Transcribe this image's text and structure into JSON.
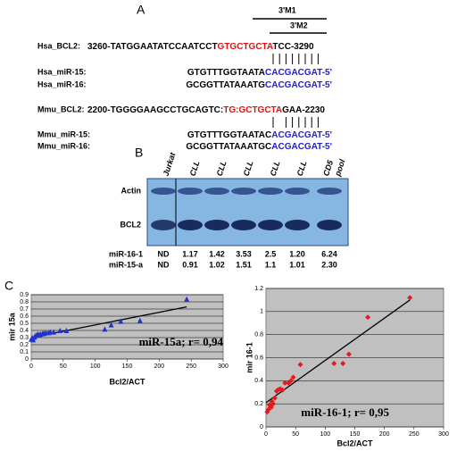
{
  "panel_a": {
    "label": "A",
    "motifs": [
      "3'M1",
      "3'M2"
    ],
    "rows": [
      {
        "name": "Hsa_BCL2:",
        "segments": [
          {
            "text": "3260-TATGGAATATCCAATCCT",
            "color": "#000000"
          },
          {
            "text": "GTGCTGCTA",
            "color": "#e01010"
          },
          {
            "text": "TCC-3290",
            "color": "#000000"
          }
        ]
      },
      {
        "name": "Hsa_miR-15:",
        "segments": [
          {
            "text": "GTGTTTGGTAATA",
            "color": "#000000"
          },
          {
            "text": "CACGACGAT-5'",
            "color": "#2020d0"
          }
        ]
      },
      {
        "name": "Hsa_miR-16:",
        "segments": [
          {
            "text": "GCGGTTATAAATG",
            "color": "#000000"
          },
          {
            "text": "CACGACGAT-5'",
            "color": "#2020d0"
          }
        ]
      },
      {
        "name": "Mmu_BCL2:",
        "segments": [
          {
            "text": "2200-TGGGGAAGCCTGCAGTC:",
            "color": "#000000"
          },
          {
            "text": "TG:GCTGCTA",
            "color": "#e01010"
          },
          {
            "text": "GAA-2230",
            "color": "#000000"
          }
        ]
      },
      {
        "name": "Mmu_miR-15:",
        "segments": [
          {
            "text": "GTGTTTGGTAATAC",
            "color": "#000000"
          },
          {
            "text": "ACGACGAT-5'",
            "color": "#2020d0"
          }
        ]
      },
      {
        "name": "Mmu_miR-16:",
        "segments": [
          {
            "text": "GCGGTTATAAATGC",
            "color": "#000000"
          },
          {
            "text": "ACGACGAT-5'",
            "color": "#2020d0"
          }
        ]
      }
    ]
  },
  "panel_b": {
    "label": "B",
    "lanes": [
      [
        "Jurkat"
      ],
      [
        "CLL"
      ],
      [
        "CLL"
      ],
      [
        "CLL"
      ],
      [
        "CLL"
      ],
      [
        "CLL"
      ],
      [
        "CD5",
        "pool"
      ]
    ],
    "bands": [
      "Actin",
      "BCL2"
    ],
    "table": [
      {
        "label": "miR-16-1",
        "values": [
          "ND",
          "1.17",
          "1.42",
          "3.53",
          "2.5",
          "1.20",
          "6.24"
        ]
      },
      {
        "label": "miR-15-a",
        "values": [
          "ND",
          "0.91",
          "1.02",
          "1.51",
          "1.1",
          "1.01",
          "2.30"
        ]
      }
    ]
  },
  "panel_c": {
    "label": "C"
  },
  "chart_data": [
    {
      "type": "scatter",
      "x_label": "Bcl2/ACT",
      "y_label": "mir 15a",
      "annotation": "miR-15a; r= 0,94",
      "color": "#2233cc",
      "marker": "triangle",
      "grid": true,
      "x": [
        0,
        2,
        3,
        5,
        7,
        9,
        11,
        13,
        15,
        18,
        20,
        23,
        27,
        30,
        35,
        45,
        55,
        115,
        125,
        140,
        170,
        243
      ],
      "values": [
        0.28,
        0.3,
        0.27,
        0.31,
        0.33,
        0.34,
        0.35,
        0.34,
        0.35,
        0.36,
        0.36,
        0.37,
        0.37,
        0.38,
        0.38,
        0.4,
        0.4,
        0.42,
        0.48,
        0.53,
        0.54,
        0.84
      ],
      "trendline": {
        "x": [
          0,
          243
        ],
        "values": [
          0.3,
          0.73
        ],
        "color": "#000000"
      },
      "xlim": [
        0,
        300
      ],
      "xticks": [
        0,
        50,
        100,
        150,
        200,
        250,
        300
      ],
      "ylim": [
        0,
        0.9
      ],
      "yticks": [
        0,
        0.1,
        0.2,
        0.3,
        0.4,
        0.5,
        0.6,
        0.7,
        0.8,
        0.9
      ]
    },
    {
      "type": "scatter",
      "x_label": "Bcl2/ACT",
      "y_label": "mir 16-1",
      "annotation": "miR-16-1; r= 0,95",
      "color": "#e41a1c",
      "marker": "diamond",
      "grid": true,
      "x": [
        2,
        4,
        6,
        9,
        10,
        12,
        15,
        18,
        20,
        24,
        28,
        32,
        38,
        42,
        46,
        58,
        115,
        130,
        140,
        172,
        243
      ],
      "values": [
        0.13,
        0.15,
        0.19,
        0.17,
        0.22,
        0.2,
        0.25,
        0.31,
        0.32,
        0.33,
        0.32,
        0.38,
        0.38,
        0.4,
        0.43,
        0.54,
        0.55,
        0.55,
        0.63,
        0.95,
        1.12
      ],
      "trendline": {
        "x": [
          0,
          243
        ],
        "values": [
          0.21,
          1.1
        ],
        "color": "#000000"
      },
      "xlim": [
        0,
        300
      ],
      "xticks": [
        0,
        50,
        100,
        150,
        200,
        250,
        300
      ],
      "ylim": [
        0,
        1.2
      ],
      "yticks": [
        0,
        0.2,
        0.4,
        0.6,
        0.8,
        1,
        1.2
      ]
    }
  ]
}
